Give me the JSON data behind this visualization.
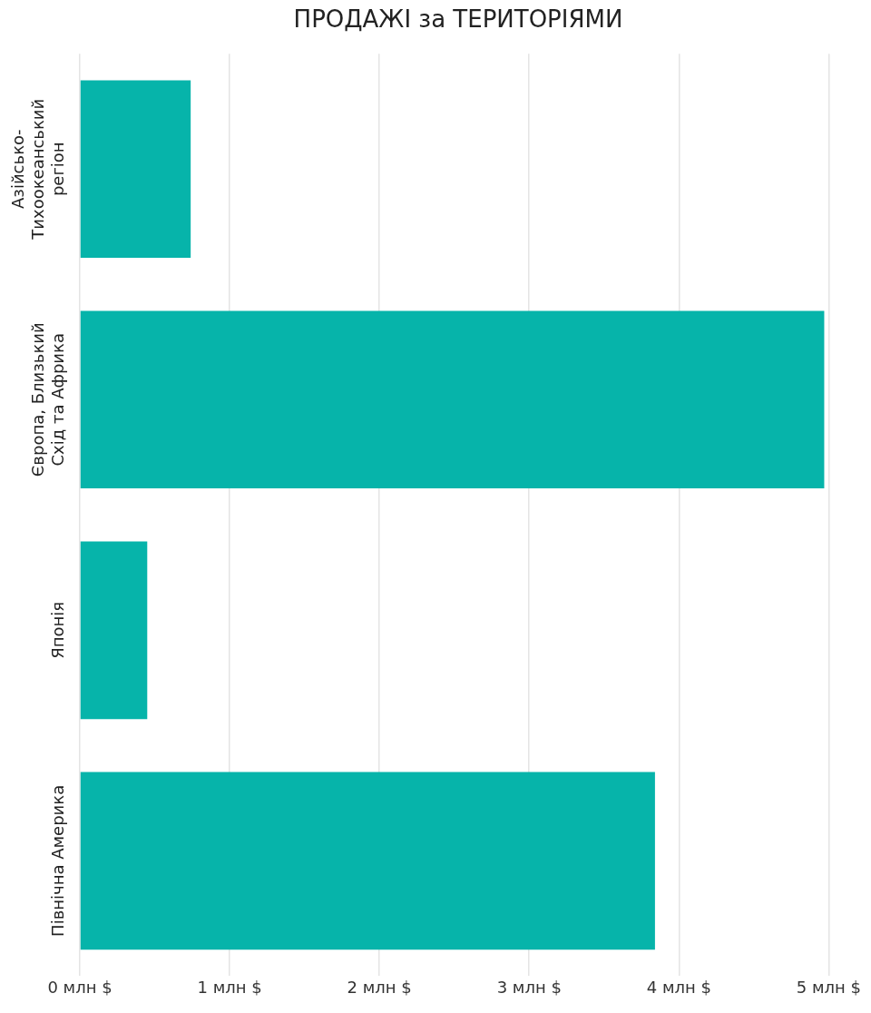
{
  "chart_data": {
    "type": "bar",
    "title": "ПРОДАЖІ за ТЕРИТОРІЯМИ",
    "orientation": "horizontal",
    "categories": [
      "Азійсько-Тихоокеанський регіон",
      "Європа, Близький Схід та Африка",
      "Японія",
      "Північна Америка"
    ],
    "values": [
      0.74,
      4.97,
      0.45,
      3.84
    ],
    "color": "#06b4aa",
    "xlim": [
      0,
      5
    ],
    "xticks": [
      {
        "value": 0,
        "label": "0 млн $"
      },
      {
        "value": 1,
        "label": "1 млн $"
      },
      {
        "value": 2,
        "label": "2 млн $"
      },
      {
        "value": 3,
        "label": "3 млн $"
      },
      {
        "value": 4,
        "label": "4 млн $"
      },
      {
        "value": 5,
        "label": "5 млн $"
      }
    ],
    "grid": "x",
    "legend": false
  }
}
